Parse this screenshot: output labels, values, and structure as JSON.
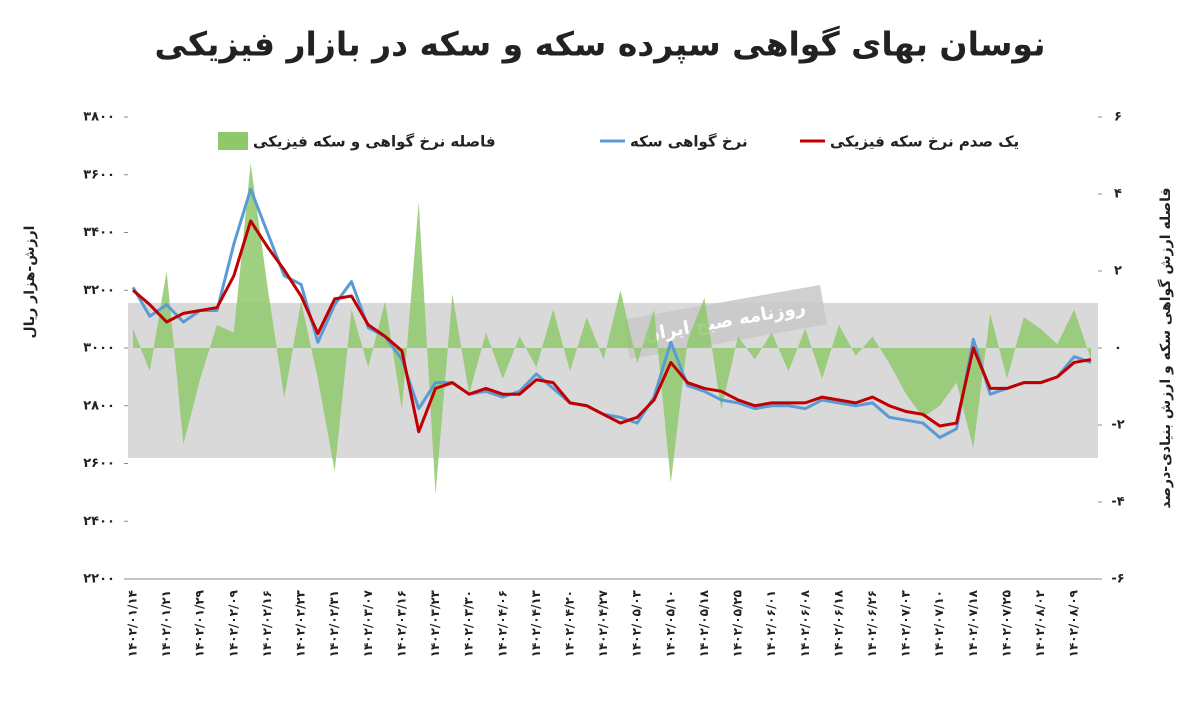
{
  "chart_data": {
    "type": "combo",
    "title": "نوسان بهای گواهی سپرده سکه و سکه در بازار فیزیکی",
    "watermark": "روزنامه صبح ایران",
    "y_label": "ارزش-هزار ریال",
    "y2_label": "فاصله ارزش گواهی سکه و ارزش بنیادی-درصد",
    "legend": "top",
    "categories": [
      "۱۴۰۲/۰۱/۱۴",
      null,
      "۱۴۰۲/۰۱/۲۱",
      null,
      "۱۴۰۲/۰۱/۲۹",
      null,
      "۱۴۰۲/۰۲/۰۹",
      null,
      "۱۴۰۲/۰۲/۱۶",
      null,
      "۱۴۰۲/۰۲/۲۳",
      null,
      "۱۴۰۲/۰۲/۳۱",
      null,
      "۱۴۰۲/۰۳/۰۷",
      null,
      "۱۴۰۲/۰۳/۱۶",
      null,
      "۱۴۰۲/۰۳/۲۳",
      null,
      "۱۴۰۲/۰۳/۳۰",
      null,
      "۱۴۰۲/۰۴/۰۶",
      null,
      "۱۴۰۲/۰۴/۱۳",
      null,
      "۱۴۰۲/۰۴/۲۰",
      null,
      "۱۴۰۲/۰۴/۲۷",
      null,
      "۱۴۰۲/۰۵/۰۳",
      null,
      "۱۴۰۲/۰۵/۱۰",
      null,
      "۱۴۰۲/۰۵/۱۸",
      null,
      "۱۴۰۲/۰۵/۲۵",
      null,
      "۱۴۰۲/۰۶/۰۱",
      null,
      "۱۴۰۲/۰۶/۰۸",
      null,
      "۱۴۰۲/۰۶/۱۸",
      null,
      "۱۴۰۲/۰۶/۲۶",
      null,
      "۱۴۰۲/۰۷/۰۳",
      null,
      "۱۴۰۲/۰۷/۱۰",
      null,
      "۱۴۰۲/۰۷/۱۸",
      null,
      "۱۴۰۲/۰۷/۲۵",
      null,
      "۱۴۰۲/۰۸/۰۲",
      null,
      "۱۴۰۲/۰۸/۰۹",
      null
    ],
    "series": [
      {
        "name": "فاصله نرخ گواهی و سکه فیزیکی",
        "kind": "area",
        "axis": "y2",
        "color": "#8fc86b",
        "values": [
          0.5,
          -0.6,
          2.0,
          -2.5,
          -0.8,
          0.6,
          0.4,
          4.8,
          1.6,
          -1.3,
          1.2,
          -0.8,
          -3.2,
          1.0,
          -0.5,
          1.2,
          -1.6,
          3.8,
          -3.8,
          1.4,
          -1.2,
          0.4,
          -0.8,
          0.3,
          -0.5,
          1.0,
          -0.6,
          0.8,
          -0.3,
          1.5,
          -0.4,
          1.0,
          -3.5,
          0.2,
          1.3,
          -1.6,
          0.3,
          -0.3,
          0.4,
          -0.6,
          0.5,
          -0.8,
          0.6,
          -0.2,
          0.3,
          -0.4,
          -1.2,
          -1.8,
          -1.5,
          -0.9,
          -2.6,
          0.9,
          -0.8,
          0.8,
          0.5,
          0.1,
          1.0,
          -0.3
        ]
      },
      {
        "name": "نرخ گواهی سکه",
        "kind": "line",
        "color": "#5b9bd5",
        "values": [
          3210,
          3110,
          3150,
          3090,
          3130,
          3130,
          3360,
          3550,
          3400,
          3250,
          3220,
          3020,
          3150,
          3230,
          3070,
          3040,
          2960,
          2790,
          2880,
          2880,
          2840,
          2850,
          2830,
          2850,
          2910,
          2860,
          2810,
          2800,
          2770,
          2760,
          2740,
          2830,
          3020,
          2870,
          2850,
          2820,
          2810,
          2790,
          2800,
          2800,
          2790,
          2820,
          2810,
          2800,
          2810,
          2760,
          2750,
          2740,
          2690,
          2720,
          3030,
          2840,
          2860,
          2880,
          2880,
          2900,
          2970,
          2950
        ]
      },
      {
        "name": "یک صدم نرخ سکه فیزیکی",
        "kind": "line",
        "color": "#c00000",
        "values": [
          3200,
          3150,
          3090,
          3120,
          3130,
          3140,
          3250,
          3440,
          3350,
          3270,
          3180,
          3050,
          3170,
          3180,
          3080,
          3040,
          2990,
          2710,
          2860,
          2880,
          2840,
          2860,
          2840,
          2840,
          2890,
          2880,
          2810,
          2800,
          2770,
          2740,
          2760,
          2820,
          2950,
          2880,
          2860,
          2850,
          2820,
          2800,
          2810,
          2810,
          2810,
          2830,
          2820,
          2810,
          2830,
          2800,
          2780,
          2770,
          2730,
          2740,
          3000,
          2860,
          2860,
          2880,
          2880,
          2900,
          2950,
          2960
        ]
      }
    ],
    "ylim": [
      2200,
      3800
    ],
    "yticks": [
      {
        "value": 2200,
        "label": "۲۲۰۰"
      },
      {
        "value": 2400,
        "label": "۲۴۰۰"
      },
      {
        "value": 2600,
        "label": "۲۶۰۰"
      },
      {
        "value": 2800,
        "label": "۲۸۰۰"
      },
      {
        "value": 3000,
        "label": "۳۰۰۰"
      },
      {
        "value": 3200,
        "label": "۳۲۰۰"
      },
      {
        "value": 3400,
        "label": "۳۴۰۰"
      },
      {
        "value": 3600,
        "label": "۳۶۰۰"
      },
      {
        "value": 3800,
        "label": "۳۸۰۰"
      }
    ],
    "y2lim": [
      -6,
      6
    ],
    "y2ticks": [
      {
        "value": -6,
        "label": "-۶"
      },
      {
        "value": -4,
        "label": "-۴"
      },
      {
        "value": -2,
        "label": "-۲"
      },
      {
        "value": 0,
        "label": "۰"
      },
      {
        "value": 2,
        "label": "۲"
      },
      {
        "value": 4,
        "label": "۴"
      },
      {
        "value": 6,
        "label": "۶"
      }
    ]
  }
}
